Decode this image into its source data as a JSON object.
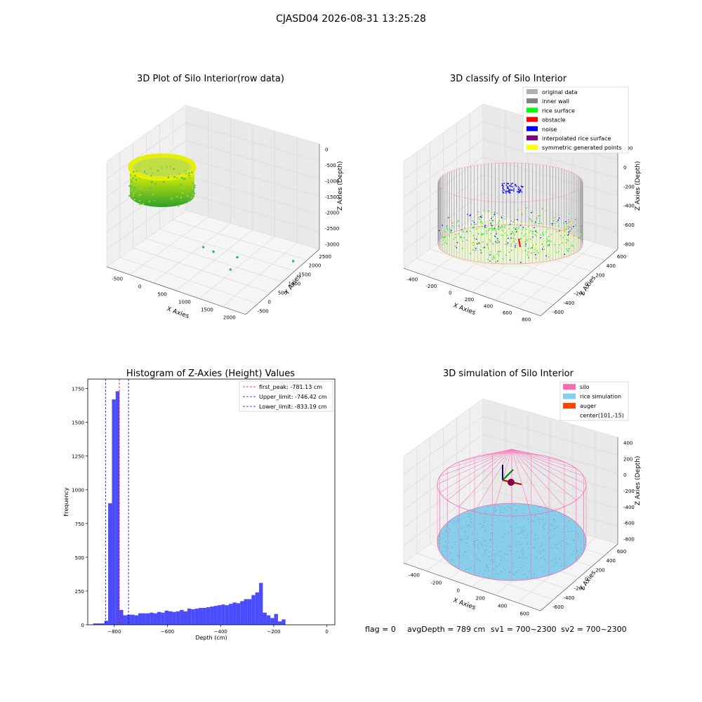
{
  "suptitle": "CJASD04 2026-08-31 13:25:28",
  "status_line": {
    "flag": "flag = 0",
    "avg": "avgDepth = 789 cm",
    "sv1": "sv1 = 700~2300",
    "sv2": "sv2 = 700~2300"
  },
  "chart_data": [
    {
      "type": "scatter",
      "title": "3D Plot of Silo Interior(row data)",
      "xlabel": "X Axies",
      "ylabel": "Y Axies",
      "zlabel": "Z Axies (Depth)",
      "x_ticks": [
        "-500",
        "0",
        "500",
        "1000",
        "1500",
        "2000"
      ],
      "y_ticks": [
        "-500",
        "0",
        "500",
        "1000",
        "1500",
        "2000",
        "2500"
      ],
      "z_ticks": [
        "0",
        "-500",
        "-1000",
        "-1500",
        "-2000",
        "-2500",
        "-3000"
      ],
      "xlim": [
        -700,
        2300
      ],
      "ylim": [
        -700,
        2700
      ],
      "zlim": [
        -3000,
        100
      ],
      "colors": {
        "gradient_low": "#2ca02c",
        "gradient_high": "#ffff00",
        "outlier": "#3cb371"
      },
      "outliers": [
        {
          "x": 900,
          "y": 300,
          "z": -2200
        },
        {
          "x": 1050,
          "y": 450,
          "z": -2350
        },
        {
          "x": 1400,
          "y": 800,
          "z": -2550
        },
        {
          "x": 1300,
          "y": 700,
          "z": -2900
        },
        {
          "x": 2150,
          "y": 1800,
          "z": -2900
        }
      ]
    },
    {
      "type": "scatter",
      "title": "3D classify of Silo Interior",
      "xlabel": "X Axies",
      "ylabel": "Y Axies",
      "zlabel": "Z Axies (Depth)",
      "x_ticks": [
        "-400",
        "-200",
        "0",
        "200",
        "400",
        "600",
        "800"
      ],
      "y_ticks": [
        "-600",
        "-400",
        "-200",
        "0",
        "200",
        "400",
        "600"
      ],
      "z_ticks": [
        "200",
        "0",
        "-200",
        "-400",
        "-600",
        "-800"
      ],
      "legend": [
        {
          "label": "original data",
          "color": "#b0b0b0"
        },
        {
          "label": "inner wall",
          "color": "#808080"
        },
        {
          "label": "rice surface",
          "color": "#00ff00"
        },
        {
          "label": "obstacle",
          "color": "#ff0000"
        },
        {
          "label": "noise",
          "color": "#0000ff"
        },
        {
          "label": "interpolated rice surface",
          "color": "#800080"
        },
        {
          "label": "symmetric generated points",
          "color": "#ffff00"
        }
      ]
    },
    {
      "type": "bar",
      "title": "Histogram of Z-Axies (Height) Values",
      "xlabel": "Depth (cm)",
      "ylabel": "Frequency",
      "xlim": [
        -900,
        30
      ],
      "ylim": [
        0,
        1820
      ],
      "x_ticks": [
        -800,
        -600,
        -400,
        -200,
        0
      ],
      "y_ticks": [
        0,
        250,
        500,
        750,
        1000,
        1250,
        1500,
        1750
      ],
      "bin_start": -880,
      "bin_width": 14.2,
      "bar_color": "#0000ff",
      "values": [
        10,
        10,
        10,
        30,
        900,
        1670,
        1730,
        110,
        70,
        75,
        75,
        70,
        85,
        85,
        85,
        90,
        85,
        95,
        90,
        105,
        100,
        95,
        100,
        110,
        100,
        120,
        115,
        120,
        125,
        125,
        130,
        135,
        140,
        145,
        150,
        145,
        155,
        165,
        160,
        175,
        190,
        190,
        220,
        240,
        310,
        90,
        70,
        50,
        80,
        25,
        40
      ],
      "legend": [
        {
          "label": "first_peak: -781.13 cm",
          "value": -781.13,
          "color": "#ff0000"
        },
        {
          "label": "Upper_limit: -746.42 cm",
          "value": -746.42,
          "color": "#0000ff"
        },
        {
          "label": "Lower_limit: -833.19 cm",
          "value": -833.19,
          "color": "#0000ff"
        }
      ]
    },
    {
      "type": "line",
      "title": "3D simulation of Silo Interior",
      "xlabel": "X Axies",
      "ylabel": "Y Axies",
      "zlabel": "Z Axies (Depth)",
      "x_ticks": [
        "-400",
        "-200",
        "0",
        "200",
        "400",
        "600"
      ],
      "y_ticks": [
        "-600",
        "-400",
        "-200",
        "0",
        "200",
        "400",
        "600"
      ],
      "z_ticks": [
        "400",
        "200",
        "0",
        "-200",
        "-400",
        "-600",
        "-800"
      ],
      "legend": [
        {
          "label": "silo",
          "color": "#ff69b4"
        },
        {
          "label": "rice simulation",
          "color": "#87ceeb"
        },
        {
          "label": "auger",
          "color": "#ff4500"
        },
        {
          "label": "center(101,-15)",
          "color": ""
        }
      ]
    }
  ]
}
